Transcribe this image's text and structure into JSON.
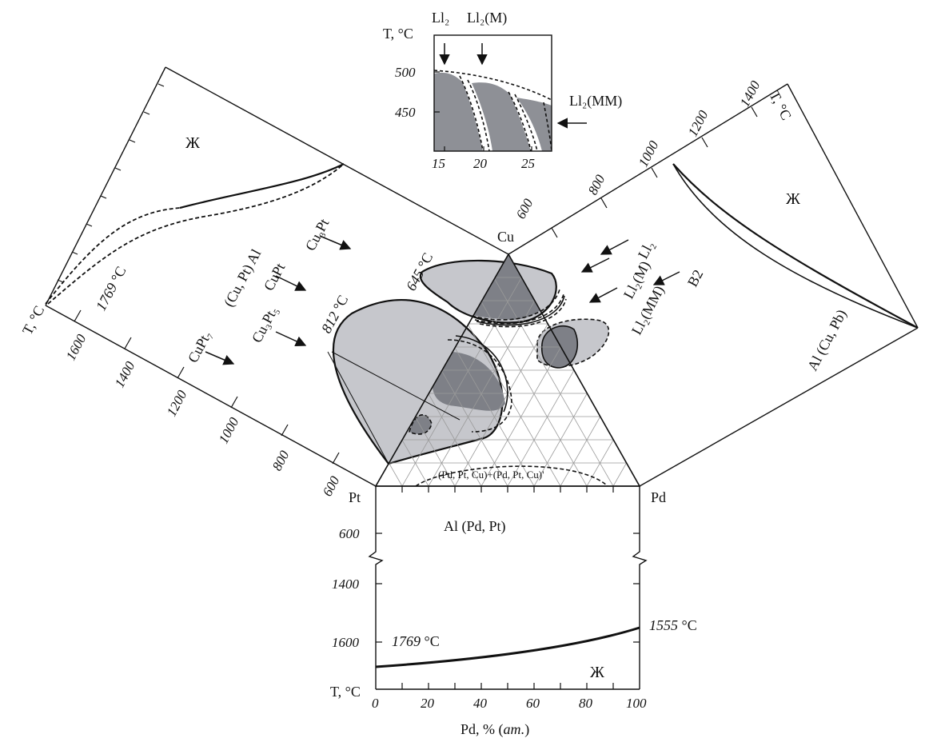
{
  "corners": {
    "cu": "Cu",
    "pt": "Pt",
    "pd": "Pd"
  },
  "temps": {
    "t1769": "1769",
    "t1555": "1555",
    "t645": "645",
    "t812": "812",
    "deg": "°C"
  },
  "axis_T_label": "T, °C",
  "bottom_panel": {
    "x_ticks": [
      "0",
      "20",
      "40",
      "60",
      "80",
      "100"
    ],
    "y_ticks": [
      "600",
      "1400",
      "1600"
    ],
    "phase_solid": "Al (Pd, Pt)",
    "phase_liquid": "Ж",
    "xlabel_prefix": "Pd, % (",
    "xlabel_unit": "ат.",
    "xlabel_suffix": ")"
  },
  "left_panel": {
    "y_ticks": [
      "600",
      "800",
      "1000",
      "1200",
      "1400",
      "1600"
    ],
    "phase_liquid": "Ж",
    "phase_solid": "(Cu, Pt) Al",
    "phase_cu3pt": "Cu₃Pt",
    "phase_cupt": "CuPt",
    "phase_cu3pt5": "Cu₃Pt₅",
    "phase_cupt7": "CuPt₇"
  },
  "right_panel": {
    "y_ticks": [
      "600",
      "800",
      "1000",
      "1200",
      "1400"
    ],
    "phase_liquid": "Ж",
    "phase_solid": "Al (Cu, Pb)",
    "phase_b2": "B2",
    "phase_l12": "Ll₂",
    "phase_l12m": "Ll₂(M)",
    "phase_l12mm": "Ll₂(MM)"
  },
  "inset": {
    "x_ticks": [
      "15",
      "20",
      "25"
    ],
    "y_ticks": [
      "500",
      "450"
    ],
    "label_l12": "Ll₂",
    "label_l12m": "Ll₂(M)",
    "label_l12mm": "Ll₂(MM)"
  },
  "center_label": "(Pd, Pt, Cu)+(Pd, Pt, Cu)'"
}
